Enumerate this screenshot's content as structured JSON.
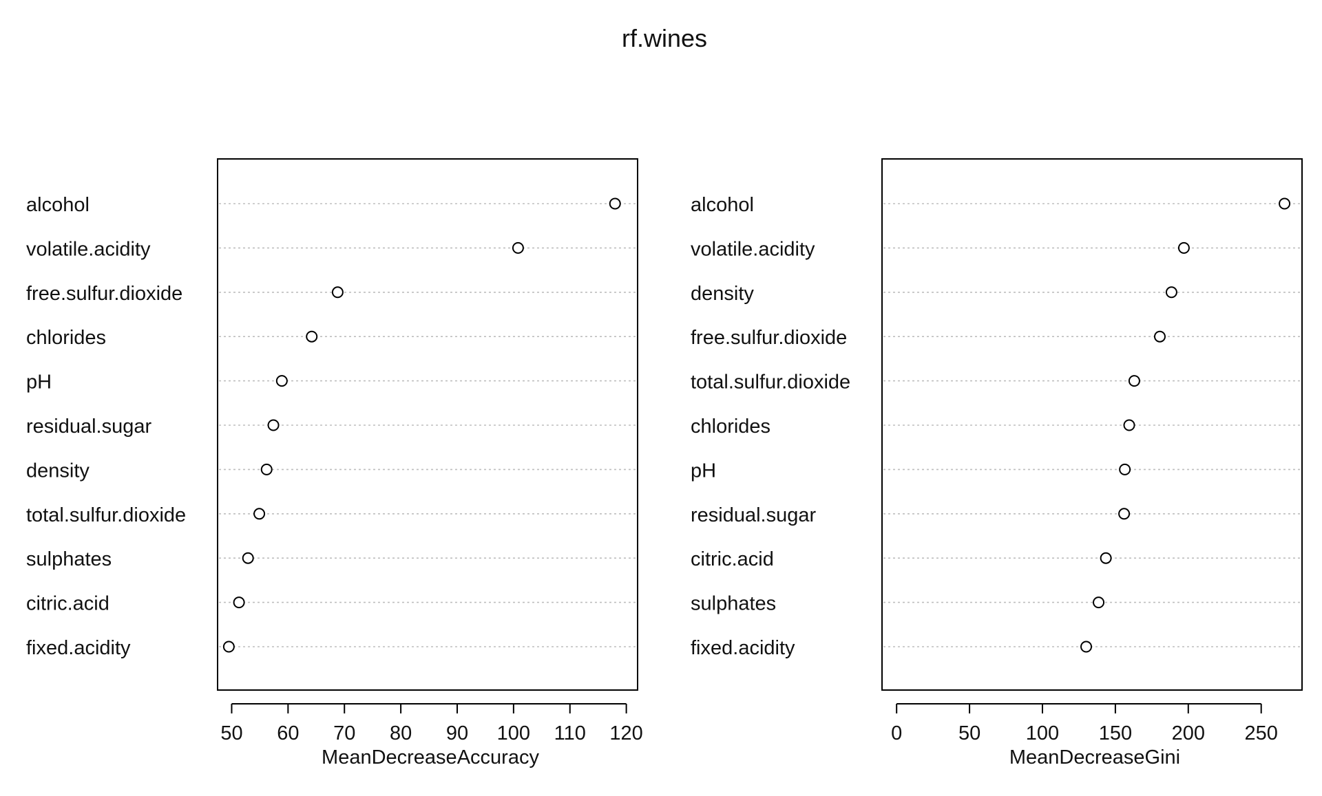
{
  "chart_data": [
    {
      "type": "dot",
      "title": "rf.wines",
      "xlabel": "MeanDecreaseAccuracy",
      "xlim": [
        47.5,
        122
      ],
      "xticks": [
        50,
        60,
        70,
        80,
        90,
        100,
        110,
        120
      ],
      "grid": "dotted horizontal per variable",
      "categories": [
        "alcohol",
        "volatile.acidity",
        "free.sulfur.dioxide",
        "chlorides",
        "pH",
        "residual.sugar",
        "density",
        "total.sulfur.dioxide",
        "sulphates",
        "citric.acid",
        "fixed.acidity"
      ],
      "values": [
        118.0,
        100.8,
        68.8,
        64.2,
        58.9,
        57.4,
        56.2,
        54.9,
        52.9,
        51.3,
        49.5
      ]
    },
    {
      "type": "dot",
      "xlabel": "MeanDecreaseGini",
      "xlim": [
        -10,
        278
      ],
      "xticks": [
        0,
        50,
        100,
        150,
        200,
        250
      ],
      "grid": "dotted horizontal per variable",
      "categories": [
        "alcohol",
        "volatile.acidity",
        "density",
        "free.sulfur.dioxide",
        "total.sulfur.dioxide",
        "chlorides",
        "pH",
        "residual.sugar",
        "citric.acid",
        "sulphates",
        "fixed.acidity"
      ],
      "values": [
        266.0,
        197.0,
        188.5,
        180.5,
        163.0,
        159.5,
        156.5,
        156.0,
        143.5,
        138.5,
        130.0
      ]
    }
  ]
}
